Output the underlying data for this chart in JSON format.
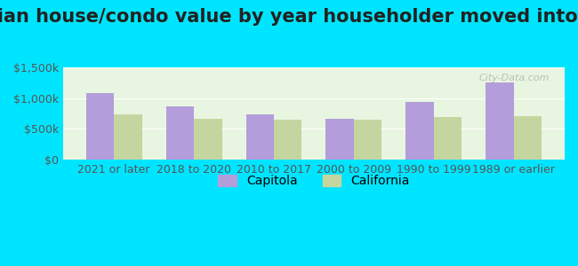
{
  "title": "Median house/condo value by year householder moved into unit",
  "categories": [
    "2021 or later",
    "2018 to 2020",
    "2010 to 2017",
    "2000 to 2009",
    "1990 to 1999",
    "1989 or earlier"
  ],
  "capitola_values": [
    1080000,
    860000,
    740000,
    660000,
    940000,
    1250000
  ],
  "california_values": [
    730000,
    660000,
    650000,
    655000,
    690000,
    710000
  ],
  "capitola_color": "#b39ddb",
  "california_color": "#c5d5a0",
  "background_outer": "#00e5ff",
  "background_inner": "#e8f5e0",
  "ylim": [
    0,
    1500000
  ],
  "yticks": [
    0,
    500000,
    1000000,
    1500000
  ],
  "ytick_labels": [
    "$0",
    "$500k",
    "$1,000k",
    "$1,500k"
  ],
  "legend_labels": [
    "Capitola",
    "California"
  ],
  "watermark": "City-Data.com",
  "title_fontsize": 15,
  "tick_fontsize": 9,
  "legend_fontsize": 10
}
